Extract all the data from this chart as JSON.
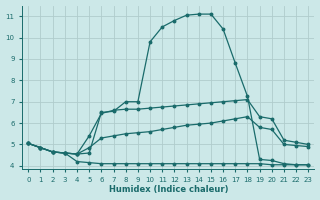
{
  "xlabel": "Humidex (Indice chaleur)",
  "bg_color": "#cce8e8",
  "grid_color": "#b8d8d8",
  "line_color": "#1a6b6b",
  "xlim": [
    -0.5,
    23.5
  ],
  "ylim": [
    3.85,
    11.5
  ],
  "xticks": [
    0,
    1,
    2,
    3,
    4,
    5,
    6,
    7,
    8,
    9,
    10,
    11,
    12,
    13,
    14,
    15,
    16,
    17,
    18,
    19,
    20,
    21,
    22,
    23
  ],
  "yticks": [
    4,
    5,
    6,
    7,
    8,
    9,
    10,
    11
  ],
  "line1_x": [
    0,
    1,
    2,
    3,
    4,
    5,
    6,
    7,
    8,
    9,
    10,
    11,
    12,
    13,
    14,
    15,
    16,
    17,
    18,
    19,
    20,
    21,
    22,
    23
  ],
  "line1_y": [
    5.05,
    4.85,
    4.65,
    4.6,
    4.2,
    4.15,
    4.1,
    4.1,
    4.1,
    4.1,
    4.1,
    4.1,
    4.1,
    4.1,
    4.1,
    4.1,
    4.1,
    4.1,
    4.1,
    4.1,
    4.05,
    4.05,
    4.05,
    4.05
  ],
  "line2_x": [
    0,
    1,
    2,
    3,
    4,
    5,
    6,
    7,
    8,
    9,
    10,
    11,
    12,
    13,
    14,
    15,
    16,
    17,
    18,
    19,
    20,
    21,
    22,
    23
  ],
  "line2_y": [
    5.05,
    4.85,
    4.65,
    4.6,
    4.55,
    4.6,
    6.5,
    6.55,
    7.0,
    7.0,
    9.8,
    10.5,
    10.8,
    11.05,
    11.1,
    11.1,
    10.4,
    8.8,
    7.25,
    4.3,
    4.25,
    4.1,
    4.05,
    4.05
  ],
  "line3_x": [
    0,
    1,
    2,
    3,
    4,
    5,
    6,
    7,
    8,
    9,
    10,
    11,
    12,
    13,
    14,
    15,
    16,
    17,
    18,
    19,
    20,
    21,
    22,
    23
  ],
  "line3_y": [
    5.05,
    4.85,
    4.65,
    4.6,
    4.55,
    5.4,
    6.45,
    6.6,
    6.65,
    6.65,
    6.7,
    6.75,
    6.8,
    6.85,
    6.9,
    6.95,
    7.0,
    7.05,
    7.1,
    6.3,
    6.2,
    5.2,
    5.1,
    5.0
  ],
  "line4_x": [
    0,
    1,
    2,
    3,
    4,
    5,
    6,
    7,
    8,
    9,
    10,
    11,
    12,
    13,
    14,
    15,
    16,
    17,
    18,
    19,
    20,
    21,
    22,
    23
  ],
  "line4_y": [
    5.05,
    4.85,
    4.65,
    4.6,
    4.55,
    4.85,
    5.3,
    5.4,
    5.5,
    5.55,
    5.6,
    5.7,
    5.8,
    5.9,
    5.95,
    6.0,
    6.1,
    6.2,
    6.3,
    5.8,
    5.7,
    5.0,
    4.95,
    4.9
  ]
}
